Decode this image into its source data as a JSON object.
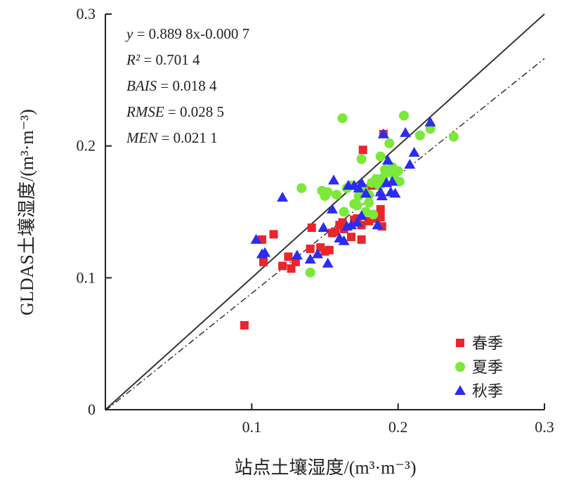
{
  "chart_data": {
    "type": "scatter",
    "title": "",
    "xlabel": "站点土壤湿度/(m³·m⁻³)",
    "ylabel": "GLDAS土壤湿度/(m³·m⁻³)",
    "xlim": [
      0,
      0.3
    ],
    "ylim": [
      0,
      0.3
    ],
    "x_ticks": [
      "0.1",
      "0.2",
      "0.3"
    ],
    "y_ticks": [
      "0",
      "0.1",
      "0.2",
      "0.3"
    ],
    "grid": false,
    "legend_position": "bottom-right",
    "annotations": [
      {
        "lhs": "y",
        "rhs": " = 0.889 8x-0.000 7"
      },
      {
        "lhs": "R²",
        "rhs": " = 0.701 4"
      },
      {
        "lhs": "BAIS",
        "rhs": " = 0.018 4"
      },
      {
        "lhs": "RMSE",
        "rhs": " = 0.028 5"
      },
      {
        "lhs": "MEN",
        "rhs": " = 0.021 1"
      }
    ],
    "lines": [
      {
        "kind": "1:1",
        "style": "solid",
        "slope": 1,
        "intercept": 0
      },
      {
        "kind": "fit",
        "style": "dashdot",
        "slope": 0.8898,
        "intercept": -0.0007
      }
    ],
    "series": [
      {
        "name": "春季",
        "marker": "square",
        "color": "#e8262c",
        "points": [
          [
            0.095,
            0.064
          ],
          [
            0.107,
            0.129
          ],
          [
            0.108,
            0.112
          ],
          [
            0.115,
            0.133
          ],
          [
            0.121,
            0.109
          ],
          [
            0.125,
            0.116
          ],
          [
            0.127,
            0.107
          ],
          [
            0.13,
            0.112
          ],
          [
            0.14,
            0.122
          ],
          [
            0.141,
            0.138
          ],
          [
            0.147,
            0.123
          ],
          [
            0.15,
            0.12
          ],
          [
            0.153,
            0.121
          ],
          [
            0.155,
            0.134
          ],
          [
            0.157,
            0.135
          ],
          [
            0.16,
            0.14
          ],
          [
            0.162,
            0.142
          ],
          [
            0.163,
            0.137
          ],
          [
            0.168,
            0.131
          ],
          [
            0.17,
            0.144
          ],
          [
            0.172,
            0.145
          ],
          [
            0.175,
            0.129
          ],
          [
            0.175,
            0.14
          ],
          [
            0.176,
            0.197
          ],
          [
            0.178,
            0.168
          ],
          [
            0.18,
            0.143
          ],
          [
            0.183,
            0.17
          ],
          [
            0.185,
            0.145
          ],
          [
            0.188,
            0.146
          ],
          [
            0.188,
            0.152
          ],
          [
            0.189,
            0.139
          ],
          [
            0.19,
            0.209
          ]
        ]
      },
      {
        "name": "夏季",
        "marker": "circle",
        "color": "#7be83a",
        "points": [
          [
            0.134,
            0.168
          ],
          [
            0.14,
            0.104
          ],
          [
            0.148,
            0.166
          ],
          [
            0.15,
            0.162
          ],
          [
            0.152,
            0.165
          ],
          [
            0.158,
            0.163
          ],
          [
            0.162,
            0.221
          ],
          [
            0.163,
            0.15
          ],
          [
            0.165,
            0.168
          ],
          [
            0.168,
            0.17
          ],
          [
            0.17,
            0.156
          ],
          [
            0.172,
            0.155
          ],
          [
            0.173,
            0.162
          ],
          [
            0.175,
            0.19
          ],
          [
            0.176,
            0.168
          ],
          [
            0.178,
            0.15
          ],
          [
            0.18,
            0.157
          ],
          [
            0.18,
            0.163
          ],
          [
            0.182,
            0.172
          ],
          [
            0.183,
            0.148
          ],
          [
            0.185,
            0.175
          ],
          [
            0.187,
            0.17
          ],
          [
            0.188,
            0.192
          ],
          [
            0.19,
            0.176
          ],
          [
            0.191,
            0.182
          ],
          [
            0.192,
            0.18
          ],
          [
            0.194,
            0.202
          ],
          [
            0.196,
            0.184
          ],
          [
            0.197,
            0.178
          ],
          [
            0.2,
            0.181
          ],
          [
            0.201,
            0.173
          ],
          [
            0.204,
            0.223
          ],
          [
            0.215,
            0.208
          ],
          [
            0.222,
            0.213
          ],
          [
            0.238,
            0.207
          ]
        ]
      },
      {
        "name": "秋季",
        "marker": "triangle",
        "color": "#2b2cf0",
        "points": [
          [
            0.103,
            0.129
          ],
          [
            0.107,
            0.118
          ],
          [
            0.109,
            0.119
          ],
          [
            0.121,
            0.161
          ],
          [
            0.131,
            0.117
          ],
          [
            0.14,
            0.114
          ],
          [
            0.145,
            0.118
          ],
          [
            0.149,
            0.138
          ],
          [
            0.152,
            0.111
          ],
          [
            0.155,
            0.152
          ],
          [
            0.156,
            0.174
          ],
          [
            0.16,
            0.13
          ],
          [
            0.163,
            0.128
          ],
          [
            0.165,
            0.139
          ],
          [
            0.166,
            0.17
          ],
          [
            0.168,
            0.14
          ],
          [
            0.17,
            0.17
          ],
          [
            0.172,
            0.142
          ],
          [
            0.173,
            0.168
          ],
          [
            0.175,
            0.172
          ],
          [
            0.175,
            0.147
          ],
          [
            0.178,
            0.164
          ],
          [
            0.186,
            0.14
          ],
          [
            0.188,
            0.165
          ],
          [
            0.189,
            0.162
          ],
          [
            0.19,
            0.209
          ],
          [
            0.192,
            0.172
          ],
          [
            0.193,
            0.189
          ],
          [
            0.195,
            0.165
          ],
          [
            0.196,
            0.173
          ],
          [
            0.198,
            0.164
          ],
          [
            0.205,
            0.21
          ],
          [
            0.208,
            0.186
          ],
          [
            0.211,
            0.195
          ],
          [
            0.222,
            0.218
          ]
        ]
      }
    ]
  }
}
